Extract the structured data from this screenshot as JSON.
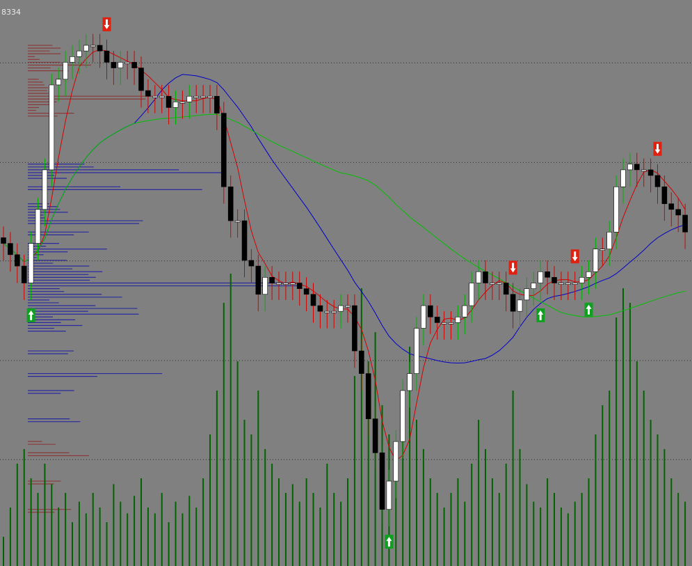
{
  "chart_data": {
    "type": "candlestick",
    "price_label": "8334",
    "ylim": [
      0,
      100
    ],
    "grid_levels": [
      88.9,
      71.3,
      53.9,
      36.3,
      18.8
    ],
    "open": [
      58,
      57,
      55,
      53,
      50,
      57,
      63,
      70,
      85,
      86,
      89,
      90,
      91,
      92,
      92,
      91,
      89,
      88,
      89,
      89,
      88,
      84,
      83,
      83,
      83,
      81,
      82,
      82,
      83,
      83,
      83,
      83,
      80,
      67,
      61,
      61,
      54,
      53,
      48,
      51,
      50,
      50,
      50,
      50,
      49,
      48,
      46,
      45,
      45,
      45,
      46,
      46,
      38,
      34,
      26,
      20,
      10,
      15,
      22,
      31,
      34,
      42,
      46,
      44,
      43,
      43,
      43,
      44,
      46,
      50,
      52,
      50,
      50,
      50,
      48,
      45,
      47,
      49,
      50,
      52,
      51,
      50,
      50,
      50,
      50,
      51,
      52,
      56,
      56,
      59,
      67,
      70,
      71,
      70,
      70,
      69,
      67,
      64,
      63,
      62
    ],
    "high": [
      60,
      59,
      57,
      55,
      59,
      65,
      72,
      87,
      88,
      91,
      92,
      93,
      94,
      94,
      94,
      93,
      91,
      91,
      91,
      91,
      90,
      86,
      85,
      85,
      85,
      84,
      84,
      85,
      85,
      85,
      85,
      85,
      82,
      69,
      63,
      63,
      56,
      55,
      53,
      53,
      52,
      52,
      52,
      52,
      51,
      50,
      48,
      47,
      47,
      48,
      48,
      48,
      40,
      36,
      28,
      22,
      17,
      24,
      33,
      36,
      44,
      48,
      48,
      46,
      45,
      45,
      46,
      48,
      52,
      54,
      54,
      52,
      52,
      52,
      50,
      49,
      51,
      52,
      54,
      54,
      53,
      52,
      52,
      52,
      53,
      54,
      58,
      58,
      61,
      69,
      72,
      73,
      73,
      72,
      72,
      71,
      69,
      66,
      65,
      64
    ],
    "low": [
      54,
      52,
      50,
      47,
      47,
      54,
      60,
      67,
      82,
      83,
      86,
      87,
      88,
      89,
      88,
      86,
      85,
      85,
      86,
      85,
      81,
      80,
      80,
      80,
      78,
      78,
      79,
      79,
      80,
      80,
      80,
      77,
      64,
      58,
      58,
      51,
      50,
      45,
      45,
      47,
      47,
      47,
      47,
      46,
      45,
      43,
      42,
      42,
      42,
      42,
      43,
      35,
      31,
      23,
      17,
      7,
      7,
      12,
      19,
      28,
      31,
      39,
      41,
      40,
      40,
      40,
      40,
      41,
      43,
      47,
      47,
      47,
      47,
      45,
      42,
      42,
      44,
      46,
      47,
      48,
      47,
      47,
      47,
      47,
      47,
      48,
      49,
      53,
      53,
      56,
      64,
      67,
      67,
      67,
      66,
      64,
      61,
      60,
      59,
      56
    ],
    "close": [
      57,
      55,
      53,
      50,
      57,
      63,
      70,
      85,
      86,
      89,
      90,
      91,
      92,
      92,
      91,
      89,
      88,
      89,
      89,
      88,
      84,
      83,
      83,
      83,
      81,
      82,
      82,
      83,
      83,
      83,
      83,
      80,
      67,
      61,
      61,
      54,
      53,
      48,
      51,
      50,
      50,
      50,
      50,
      49,
      48,
      46,
      45,
      45,
      45,
      46,
      46,
      38,
      34,
      26,
      20,
      10,
      15,
      22,
      31,
      34,
      42,
      46,
      44,
      43,
      43,
      43,
      44,
      46,
      50,
      52,
      50,
      50,
      50,
      48,
      45,
      47,
      49,
      50,
      52,
      51,
      50,
      50,
      50,
      50,
      51,
      52,
      56,
      56,
      59,
      67,
      70,
      71,
      70,
      70,
      69,
      67,
      64,
      63,
      62,
      59
    ],
    "volume": [
      10,
      20,
      35,
      40,
      30,
      25,
      35,
      28,
      20,
      25,
      15,
      22,
      18,
      25,
      20,
      15,
      28,
      22,
      18,
      24,
      30,
      20,
      18,
      25,
      15,
      22,
      18,
      24,
      20,
      30,
      45,
      60,
      90,
      100,
      70,
      50,
      45,
      60,
      40,
      35,
      30,
      25,
      28,
      22,
      30,
      25,
      20,
      35,
      25,
      22,
      30,
      65,
      95,
      70,
      80,
      55,
      45,
      35,
      60,
      75,
      50,
      40,
      30,
      25,
      20,
      25,
      30,
      22,
      35,
      50,
      40,
      30,
      25,
      35,
      60,
      40,
      28,
      22,
      20,
      30,
      25,
      20,
      18,
      22,
      25,
      30,
      45,
      55,
      60,
      85,
      95,
      90,
      70,
      60,
      50,
      45,
      40,
      30,
      25,
      22
    ],
    "moving_averages": [
      {
        "period": 5,
        "color": "#d40000"
      },
      {
        "period": 20,
        "color": "#0000c8"
      },
      {
        "period": 50,
        "color": "#00c000"
      }
    ],
    "sell_signals": [
      15,
      74,
      83,
      95
    ],
    "buy_signals": [
      4,
      56,
      78,
      85
    ]
  }
}
